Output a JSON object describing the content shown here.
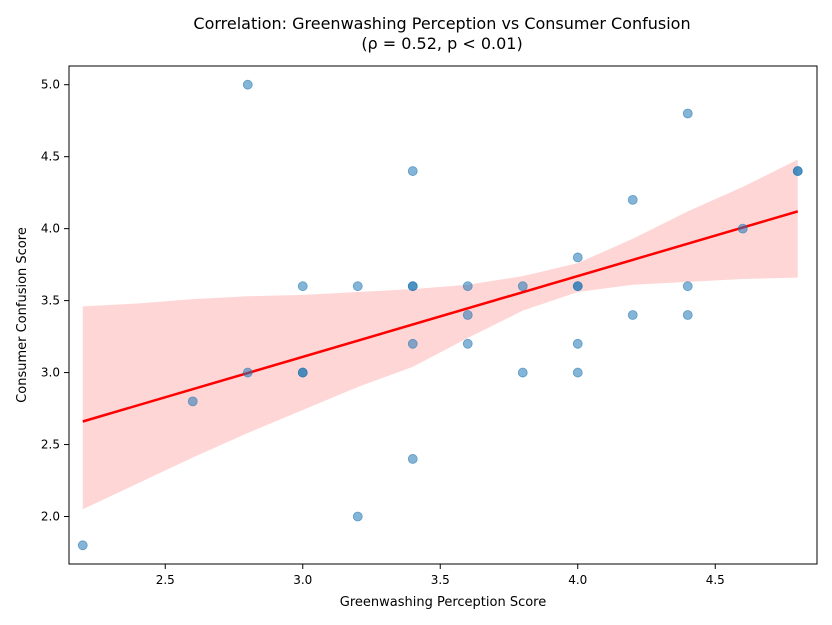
{
  "chart_data": {
    "type": "scatter",
    "title": "Correlation: Greenwashing Perception vs Consumer Confusion",
    "subtitle": "(ρ = 0.52, p < 0.01)",
    "xlabel": "Greenwashing Perception Score",
    "ylabel": "Consumer Confusion Score",
    "xlim": [
      2.15,
      4.87
    ],
    "ylim": [
      1.67,
      5.13
    ],
    "xticks": [
      2.5,
      3.0,
      3.5,
      4.0,
      4.5
    ],
    "yticks": [
      2.0,
      2.5,
      3.0,
      3.5,
      4.0,
      4.5,
      5.0
    ],
    "xtick_labels": [
      "2.5",
      "3.0",
      "3.5",
      "4.0",
      "4.5"
    ],
    "ytick_labels": [
      "2.0",
      "2.5",
      "3.0",
      "3.5",
      "4.0",
      "4.5",
      "5.0"
    ],
    "grid": false,
    "colors": {
      "points": "#1f77b4",
      "regression_line": "#ff0000",
      "confidence_band": "#ffcccc"
    },
    "points": [
      {
        "x": 2.2,
        "y": 1.8
      },
      {
        "x": 2.6,
        "y": 2.8
      },
      {
        "x": 2.8,
        "y": 5.0
      },
      {
        "x": 2.8,
        "y": 3.0
      },
      {
        "x": 3.0,
        "y": 3.6
      },
      {
        "x": 3.0,
        "y": 3.0
      },
      {
        "x": 3.0,
        "y": 3.0
      },
      {
        "x": 3.2,
        "y": 3.6
      },
      {
        "x": 3.2,
        "y": 2.0
      },
      {
        "x": 3.4,
        "y": 4.4
      },
      {
        "x": 3.4,
        "y": 3.6
      },
      {
        "x": 3.4,
        "y": 3.6
      },
      {
        "x": 3.4,
        "y": 3.2
      },
      {
        "x": 3.4,
        "y": 2.4
      },
      {
        "x": 3.6,
        "y": 3.6
      },
      {
        "x": 3.6,
        "y": 3.4
      },
      {
        "x": 3.6,
        "y": 3.2
      },
      {
        "x": 3.8,
        "y": 3.6
      },
      {
        "x": 3.8,
        "y": 3.0
      },
      {
        "x": 4.0,
        "y": 3.8
      },
      {
        "x": 4.0,
        "y": 3.6
      },
      {
        "x": 4.0,
        "y": 3.6
      },
      {
        "x": 4.0,
        "y": 3.2
      },
      {
        "x": 4.0,
        "y": 3.0
      },
      {
        "x": 4.2,
        "y": 4.2
      },
      {
        "x": 4.2,
        "y": 3.4
      },
      {
        "x": 4.4,
        "y": 4.8
      },
      {
        "x": 4.4,
        "y": 3.6
      },
      {
        "x": 4.4,
        "y": 3.4
      },
      {
        "x": 4.6,
        "y": 4.0
      },
      {
        "x": 4.8,
        "y": 4.4
      },
      {
        "x": 4.8,
        "y": 4.4
      }
    ],
    "regression_line": {
      "x": [
        2.2,
        4.8
      ],
      "y": [
        2.66,
        4.12
      ]
    },
    "confidence_band": {
      "x": [
        2.2,
        2.4,
        2.6,
        2.8,
        3.0,
        3.2,
        3.4,
        3.6,
        3.8,
        4.0,
        4.2,
        4.4,
        4.6,
        4.8
      ],
      "lower": [
        2.05,
        2.23,
        2.41,
        2.58,
        2.74,
        2.9,
        3.04,
        3.24,
        3.43,
        3.56,
        3.61,
        3.63,
        3.65,
        3.66
      ],
      "upper": [
        3.46,
        3.48,
        3.51,
        3.53,
        3.54,
        3.56,
        3.58,
        3.61,
        3.67,
        3.76,
        3.93,
        4.12,
        4.29,
        4.48
      ]
    }
  }
}
